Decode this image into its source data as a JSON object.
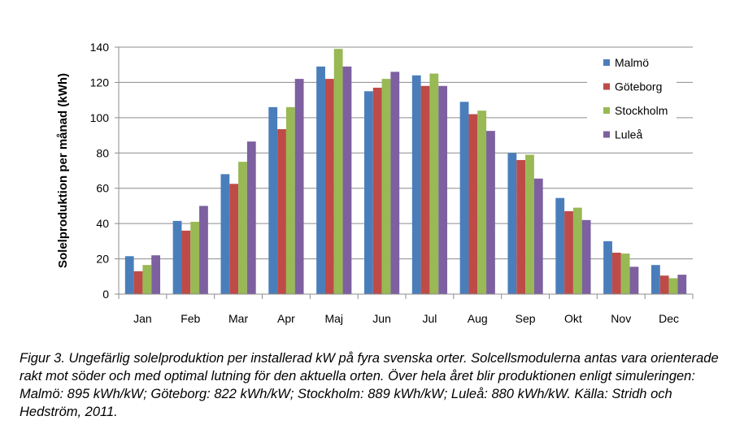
{
  "chart_data": {
    "type": "bar",
    "ylabel": "Solelproduktion per månad (kWh)",
    "xlabel": "",
    "ylim": [
      0,
      140
    ],
    "yticks": [
      0,
      20,
      40,
      60,
      80,
      100,
      120,
      140
    ],
    "grid": "horizontal",
    "legend_position": "top-right",
    "categories": [
      "Jan",
      "Feb",
      "Mar",
      "Apr",
      "Maj",
      "Jun",
      "Jul",
      "Aug",
      "Sep",
      "Okt",
      "Nov",
      "Dec"
    ],
    "series": [
      {
        "name": "Malmö",
        "color": "#4a7ebb",
        "values": [
          21.5,
          41.5,
          68,
          106,
          129,
          115,
          124,
          109,
          80,
          54.5,
          30,
          16.5
        ]
      },
      {
        "name": "Göteborg",
        "color": "#be4b48",
        "values": [
          13,
          36,
          62.5,
          93.5,
          122,
          117,
          118,
          102,
          76,
          47,
          23.5,
          10.5
        ]
      },
      {
        "name": "Stockholm",
        "color": "#98b954",
        "values": [
          16.5,
          41,
          75,
          106,
          139,
          122,
          125,
          104,
          79,
          49,
          23,
          9
        ]
      },
      {
        "name": "Luleå",
        "color": "#7d60a0",
        "values": [
          22,
          50,
          86.5,
          122,
          129,
          126,
          118,
          92.5,
          65.5,
          42,
          15.5,
          11
        ]
      }
    ]
  },
  "caption": "Figur 3. Ungefärlig solelproduktion per installerad kW på fyra svenska orter. Solcellsmodulerna antas vara orienterade rakt mot söder och med optimal lutning för den aktuella orten. Över hela året blir produktionen enligt simuleringen: Malmö: 895 kWh/kW; Göteborg: 822 kWh/kW; Stockholm: 889 kWh/kW; Luleå: 880 kWh/kW. Källa: Stridh och Hedström, 2011."
}
